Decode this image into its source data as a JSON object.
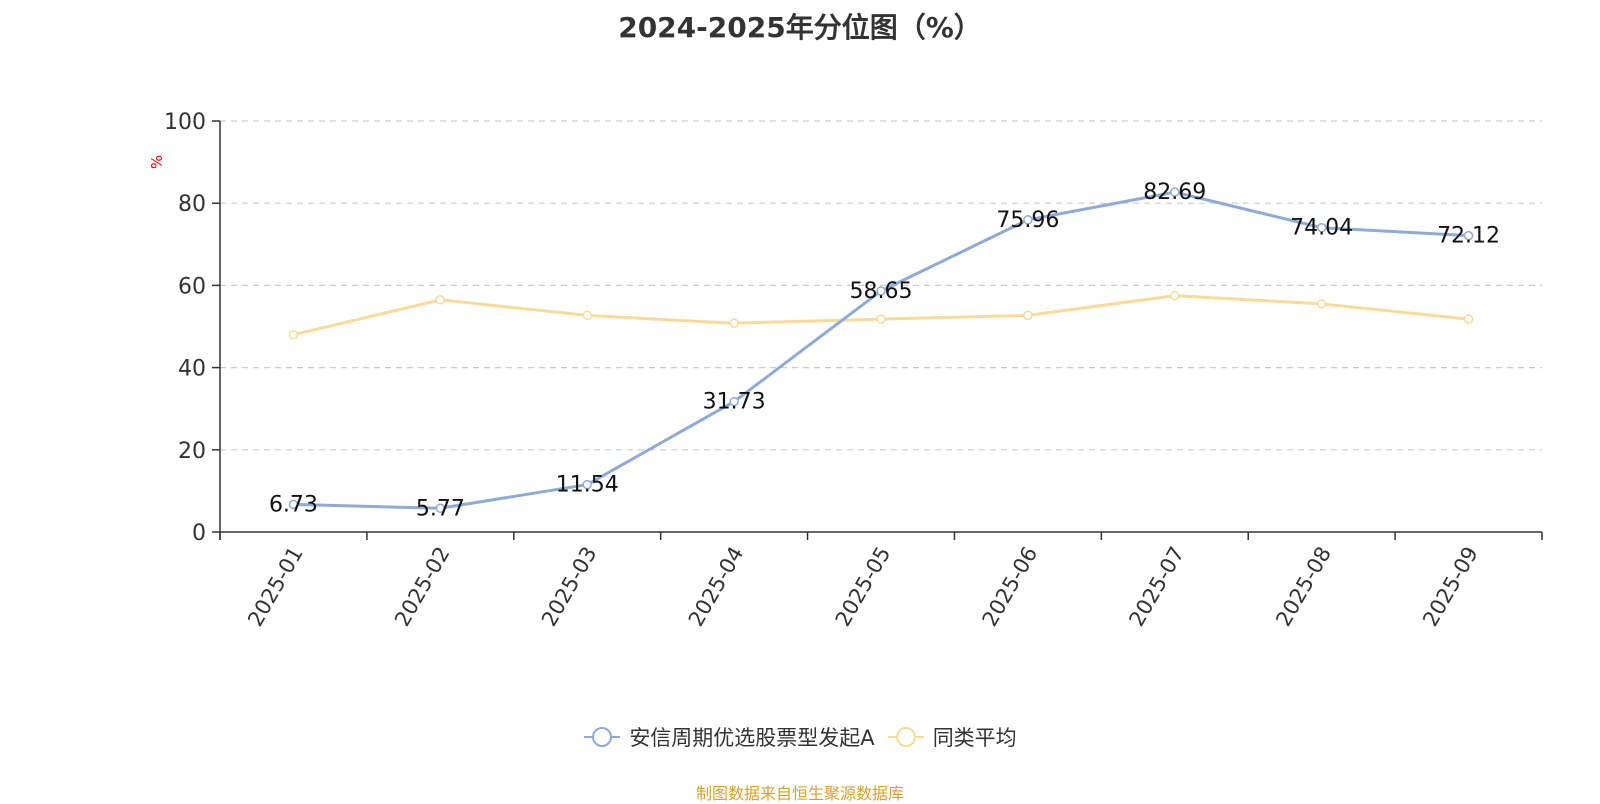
{
  "chart_data": {
    "type": "line",
    "title": "2024-2025年分位图（%）",
    "ylabel": "%",
    "categories": [
      "2025-01",
      "2025-02",
      "2025-03",
      "2025-04",
      "2025-05",
      "2025-06",
      "2025-07",
      "2025-08",
      "2025-09"
    ],
    "ylim": [
      0,
      100
    ],
    "yticks": [
      0,
      20,
      40,
      60,
      80,
      100
    ],
    "grid": true,
    "legend_position": "bottom",
    "series": [
      {
        "name": "安信周期优选股票型发起A",
        "color": "#8eaad8",
        "values": [
          6.73,
          5.77,
          11.54,
          31.73,
          58.65,
          75.96,
          82.69,
          74.04,
          72.12
        ],
        "data_labels": [
          "6.73",
          "5.77",
          "11.54",
          "31.73",
          "58.65",
          "75.96",
          "82.69",
          "74.04",
          "72.12"
        ]
      },
      {
        "name": "同类平均",
        "color": "#fbd999",
        "values": [
          48.0,
          56.5,
          52.7,
          50.8,
          51.8,
          52.7,
          57.5,
          55.5,
          51.8
        ]
      }
    ]
  },
  "source_note": "制图数据来自恒生聚源数据库",
  "colors": {
    "title": "#333333",
    "axis": "#333333",
    "grid": "#cccccc",
    "ylabel": "#ff0000",
    "source": "#d9a030"
  }
}
